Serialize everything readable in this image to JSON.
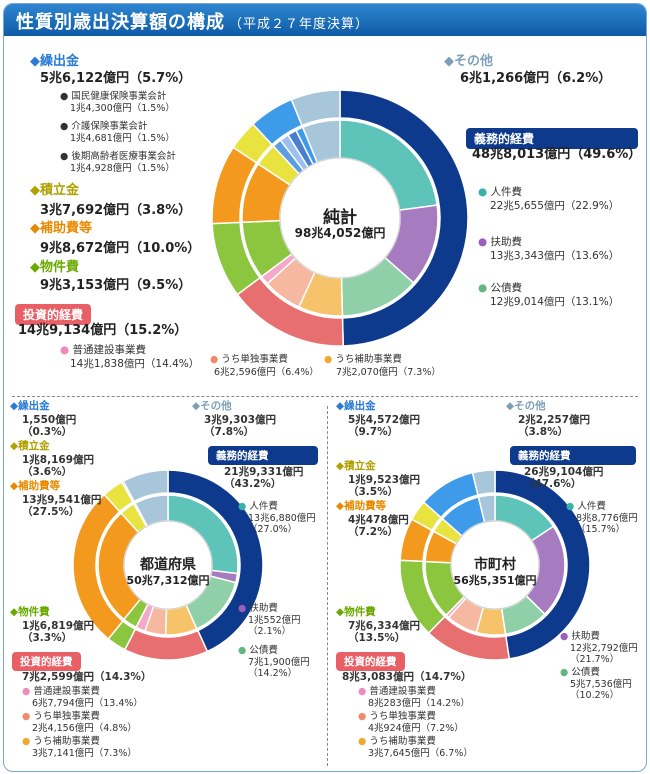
{
  "header": {
    "title": "性質別歳出決算額の構成",
    "subtitle": "（平成２７年度決算）"
  },
  "colors": {
    "gimu": "#0d3a8c",
    "jinken": "#5ec3b8",
    "fujo": "#a77bc0",
    "kosai": "#8fd0a8",
    "toshi": "#e86f6f",
    "futsu": "#f4a9c8",
    "tandoku": "#f7b8a1",
    "hojo": "#f7c36a",
    "bukken": "#8cc63f",
    "hojohi": "#f39a1e",
    "tsumitate": "#e8e33f",
    "kuridashi": "#3d9be9",
    "sonota": "#a8c6da",
    "kokuho": "#5b9fe0",
    "kaigo": "#9bbff0",
    "koki": "#4a7fd0"
  },
  "chart_data": [
    {
      "type": "pie",
      "title": "純計",
      "total": "98兆4,052億円",
      "outer": [
        {
          "key": "gimu",
          "name": "義務的経費",
          "value": 49.6,
          "amount": "48兆8,013億円（49.6%）"
        },
        {
          "key": "toshi",
          "name": "投資的経費",
          "value": 15.2,
          "amount": "14兆9,134億円（15.2%）"
        },
        {
          "key": "bukken",
          "name": "物件費",
          "value": 9.5,
          "amount": "9兆3,153億円（9.5%）"
        },
        {
          "key": "hojohi",
          "name": "補助費等",
          "value": 10.0,
          "amount": "9兆8,672億円（10.0%）"
        },
        {
          "key": "tsumitate",
          "name": "積立金",
          "value": 3.8,
          "amount": "3兆7,692億円（3.8%）"
        },
        {
          "key": "kuridashi",
          "name": "繰出金",
          "value": 5.7,
          "amount": "5兆6,122億円（5.7%）"
        },
        {
          "key": "sonota",
          "name": "その他",
          "value": 6.2,
          "amount": "6兆1,266億円（6.2%）"
        }
      ],
      "inner": [
        {
          "key": "jinken",
          "name": "人件費",
          "value": 22.9,
          "amount": "22兆5,655億円（22.9%）"
        },
        {
          "key": "fujo",
          "name": "扶助費",
          "value": 13.6,
          "amount": "13兆3,343億円（13.6%）"
        },
        {
          "key": "kosai",
          "name": "公債費",
          "value": 13.1,
          "amount": "12兆9,014億円（13.1%）"
        },
        {
          "key": "hojo",
          "name": "うち補助事業費",
          "value": 7.3,
          "amount": "7兆2,070億円（7.3%）"
        },
        {
          "key": "tandoku",
          "name": "うち単独事業費",
          "value": 6.4,
          "amount": "6兆2,596億円（6.4%）"
        },
        {
          "key": "futsu",
          "name": "普通建設事業費",
          "value": 1.5,
          "amount": "14兆1,838億円（14.4%）"
        },
        {
          "key": "bukken",
          "name": "物件費",
          "value": 9.5
        },
        {
          "key": "hojohi",
          "name": "補助費等",
          "value": 10.0
        },
        {
          "key": "tsumitate",
          "name": "積立金",
          "value": 3.8
        },
        {
          "key": "kokuho",
          "name": "国民健康保険事業会計",
          "value": 1.5,
          "amount": "1兆4,300億円（1.5%）"
        },
        {
          "key": "kaigo",
          "name": "介護保険事業会計",
          "value": 1.5,
          "amount": "1兆4,681億円（1.5%）"
        },
        {
          "key": "koki",
          "name": "後期高齢者医療事業会計",
          "value": 1.5,
          "amount": "1兆4,928億円（1.5%）"
        },
        {
          "key": "kuridashi",
          "name": "繰出金（その他）",
          "value": 1.2
        },
        {
          "key": "sonota",
          "name": "その他",
          "value": 6.2
        }
      ]
    },
    {
      "type": "pie",
      "title": "都道府県",
      "total": "50兆7,312億円",
      "outer": [
        {
          "key": "gimu",
          "name": "義務的経費",
          "value": 43.2,
          "amount": "21兆9,331億円（43.2%）"
        },
        {
          "key": "toshi",
          "name": "投資的経費",
          "value": 14.3,
          "amount": "7兆2,599億円（14.3%）"
        },
        {
          "key": "bukken",
          "name": "物件費",
          "value": 3.3,
          "amount": "1兆6,819億円（3.3%）"
        },
        {
          "key": "hojohi",
          "name": "補助費等",
          "value": 27.5,
          "amount": "13兆9,541億円（27.5%）"
        },
        {
          "key": "tsumitate",
          "name": "積立金",
          "value": 3.6,
          "amount": "1兆8,169億円（3.6%）"
        },
        {
          "key": "kuridashi",
          "name": "繰出金",
          "value": 0.3,
          "amount": "1,550億円（0.3%）"
        },
        {
          "key": "sonota",
          "name": "その他",
          "value": 7.8,
          "amount": "3兆9,303億円（7.8%）"
        }
      ],
      "inner": [
        {
          "key": "jinken",
          "name": "人件費",
          "value": 27.0,
          "amount": "13兆6,880億円（27.0%）"
        },
        {
          "key": "fujo",
          "name": "扶助費",
          "value": 2.1,
          "amount": "1兆552億円（2.1%）"
        },
        {
          "key": "kosai",
          "name": "公債費",
          "value": 14.2,
          "amount": "7兆1,900億円（14.2%）"
        },
        {
          "key": "hojo",
          "name": "うち補助事業費",
          "value": 7.3,
          "amount": "3兆7,141億円（7.3%）"
        },
        {
          "key": "tandoku",
          "name": "うち単独事業費",
          "value": 4.8,
          "amount": "2兆4,156億円（4.8%）"
        },
        {
          "key": "futsu",
          "name": "普通建設事業費",
          "value": 2.2,
          "amount": "6兆7,794億円（13.4%）"
        },
        {
          "key": "bukken",
          "name": "物件費",
          "value": 3.3
        },
        {
          "key": "hojohi",
          "name": "補助費等",
          "value": 27.5
        },
        {
          "key": "tsumitate",
          "name": "積立金",
          "value": 3.6
        },
        {
          "key": "kuridashi",
          "name": "繰出金",
          "value": 0.3
        },
        {
          "key": "sonota",
          "name": "その他",
          "value": 7.8
        }
      ]
    },
    {
      "type": "pie",
      "title": "市町村",
      "total": "56兆5,351億円",
      "outer": [
        {
          "key": "gimu",
          "name": "義務的経費",
          "value": 47.6,
          "amount": "26兆9,104億円（47.6%）"
        },
        {
          "key": "toshi",
          "name": "投資的経費",
          "value": 14.7,
          "amount": "8兆3,083億円（14.7%）"
        },
        {
          "key": "bukken",
          "name": "物件費",
          "value": 13.5,
          "amount": "7兆6,334億円（13.5%）"
        },
        {
          "key": "hojohi",
          "name": "補助費等",
          "value": 7.2,
          "amount": "4兆478億円（7.2%）"
        },
        {
          "key": "tsumitate",
          "name": "積立金",
          "value": 3.5,
          "amount": "1兆9,523億円（3.5%）"
        },
        {
          "key": "kuridashi",
          "name": "繰出金",
          "value": 9.7,
          "amount": "5兆4,572億円（9.7%）"
        },
        {
          "key": "sonota",
          "name": "その他",
          "value": 3.8,
          "amount": "2兆2,257億円（3.8%）"
        }
      ],
      "inner": [
        {
          "key": "jinken",
          "name": "人件費",
          "value": 15.7,
          "amount": "8兆8,776億円（15.7%）"
        },
        {
          "key": "fujo",
          "name": "扶助費",
          "value": 21.7,
          "amount": "12兆2,792億円（21.7%）"
        },
        {
          "key": "kosai",
          "name": "公債費",
          "value": 10.2,
          "amount": "5兆7,536億円（10.2%）"
        },
        {
          "key": "hojo",
          "name": "うち補助事業費",
          "value": 6.7,
          "amount": "3兆7,645億円（6.7%）"
        },
        {
          "key": "tandoku",
          "name": "うち単独事業費",
          "value": 7.2,
          "amount": "4兆924億円（7.2%）"
        },
        {
          "key": "futsu",
          "name": "普通建設事業費",
          "value": 0.8,
          "amount": "8兆283億円（14.2%）"
        },
        {
          "key": "bukken",
          "name": "物件費",
          "value": 13.5
        },
        {
          "key": "hojohi",
          "name": "補助費等",
          "value": 7.2
        },
        {
          "key": "tsumitate",
          "name": "積立金",
          "value": 3.5
        },
        {
          "key": "kuridashi",
          "name": "繰出金",
          "value": 9.7
        },
        {
          "key": "sonota",
          "name": "その他",
          "value": 3.8
        }
      ]
    }
  ]
}
